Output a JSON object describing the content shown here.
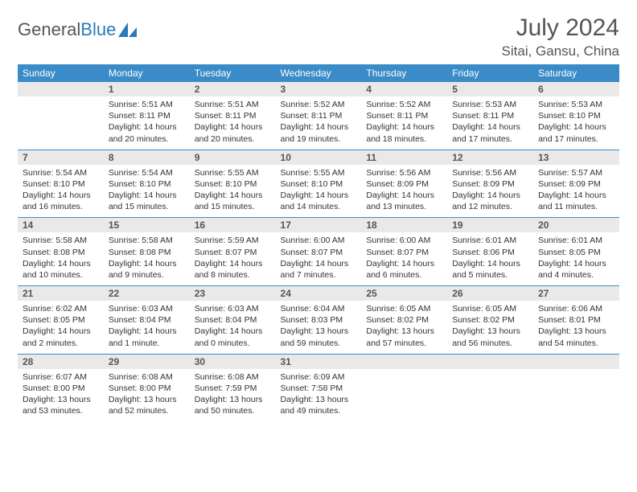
{
  "brand": {
    "name_gray": "General",
    "name_blue": "Blue"
  },
  "title": "July 2024",
  "location": "Sitai, Gansu, China",
  "colors": {
    "header_bg": "#3b8bc9",
    "header_text": "#ffffff",
    "daynum_bg": "#e9e9e9",
    "daynum_text": "#555555",
    "rule": "#3b8bc9",
    "body_text": "#333333",
    "title_text": "#555555",
    "logo_blue": "#2a7ab9"
  },
  "day_names": [
    "Sunday",
    "Monday",
    "Tuesday",
    "Wednesday",
    "Thursday",
    "Friday",
    "Saturday"
  ],
  "weeks": [
    {
      "nums": [
        "",
        "1",
        "2",
        "3",
        "4",
        "5",
        "6"
      ],
      "cells": [
        null,
        {
          "sr": "Sunrise: 5:51 AM",
          "ss": "Sunset: 8:11 PM",
          "dl1": "Daylight: 14 hours",
          "dl2": "and 20 minutes."
        },
        {
          "sr": "Sunrise: 5:51 AM",
          "ss": "Sunset: 8:11 PM",
          "dl1": "Daylight: 14 hours",
          "dl2": "and 20 minutes."
        },
        {
          "sr": "Sunrise: 5:52 AM",
          "ss": "Sunset: 8:11 PM",
          "dl1": "Daylight: 14 hours",
          "dl2": "and 19 minutes."
        },
        {
          "sr": "Sunrise: 5:52 AM",
          "ss": "Sunset: 8:11 PM",
          "dl1": "Daylight: 14 hours",
          "dl2": "and 18 minutes."
        },
        {
          "sr": "Sunrise: 5:53 AM",
          "ss": "Sunset: 8:11 PM",
          "dl1": "Daylight: 14 hours",
          "dl2": "and 17 minutes."
        },
        {
          "sr": "Sunrise: 5:53 AM",
          "ss": "Sunset: 8:10 PM",
          "dl1": "Daylight: 14 hours",
          "dl2": "and 17 minutes."
        }
      ]
    },
    {
      "nums": [
        "7",
        "8",
        "9",
        "10",
        "11",
        "12",
        "13"
      ],
      "cells": [
        {
          "sr": "Sunrise: 5:54 AM",
          "ss": "Sunset: 8:10 PM",
          "dl1": "Daylight: 14 hours",
          "dl2": "and 16 minutes."
        },
        {
          "sr": "Sunrise: 5:54 AM",
          "ss": "Sunset: 8:10 PM",
          "dl1": "Daylight: 14 hours",
          "dl2": "and 15 minutes."
        },
        {
          "sr": "Sunrise: 5:55 AM",
          "ss": "Sunset: 8:10 PM",
          "dl1": "Daylight: 14 hours",
          "dl2": "and 15 minutes."
        },
        {
          "sr": "Sunrise: 5:55 AM",
          "ss": "Sunset: 8:10 PM",
          "dl1": "Daylight: 14 hours",
          "dl2": "and 14 minutes."
        },
        {
          "sr": "Sunrise: 5:56 AM",
          "ss": "Sunset: 8:09 PM",
          "dl1": "Daylight: 14 hours",
          "dl2": "and 13 minutes."
        },
        {
          "sr": "Sunrise: 5:56 AM",
          "ss": "Sunset: 8:09 PM",
          "dl1": "Daylight: 14 hours",
          "dl2": "and 12 minutes."
        },
        {
          "sr": "Sunrise: 5:57 AM",
          "ss": "Sunset: 8:09 PM",
          "dl1": "Daylight: 14 hours",
          "dl2": "and 11 minutes."
        }
      ]
    },
    {
      "nums": [
        "14",
        "15",
        "16",
        "17",
        "18",
        "19",
        "20"
      ],
      "cells": [
        {
          "sr": "Sunrise: 5:58 AM",
          "ss": "Sunset: 8:08 PM",
          "dl1": "Daylight: 14 hours",
          "dl2": "and 10 minutes."
        },
        {
          "sr": "Sunrise: 5:58 AM",
          "ss": "Sunset: 8:08 PM",
          "dl1": "Daylight: 14 hours",
          "dl2": "and 9 minutes."
        },
        {
          "sr": "Sunrise: 5:59 AM",
          "ss": "Sunset: 8:07 PM",
          "dl1": "Daylight: 14 hours",
          "dl2": "and 8 minutes."
        },
        {
          "sr": "Sunrise: 6:00 AM",
          "ss": "Sunset: 8:07 PM",
          "dl1": "Daylight: 14 hours",
          "dl2": "and 7 minutes."
        },
        {
          "sr": "Sunrise: 6:00 AM",
          "ss": "Sunset: 8:07 PM",
          "dl1": "Daylight: 14 hours",
          "dl2": "and 6 minutes."
        },
        {
          "sr": "Sunrise: 6:01 AM",
          "ss": "Sunset: 8:06 PM",
          "dl1": "Daylight: 14 hours",
          "dl2": "and 5 minutes."
        },
        {
          "sr": "Sunrise: 6:01 AM",
          "ss": "Sunset: 8:05 PM",
          "dl1": "Daylight: 14 hours",
          "dl2": "and 4 minutes."
        }
      ]
    },
    {
      "nums": [
        "21",
        "22",
        "23",
        "24",
        "25",
        "26",
        "27"
      ],
      "cells": [
        {
          "sr": "Sunrise: 6:02 AM",
          "ss": "Sunset: 8:05 PM",
          "dl1": "Daylight: 14 hours",
          "dl2": "and 2 minutes."
        },
        {
          "sr": "Sunrise: 6:03 AM",
          "ss": "Sunset: 8:04 PM",
          "dl1": "Daylight: 14 hours",
          "dl2": "and 1 minute."
        },
        {
          "sr": "Sunrise: 6:03 AM",
          "ss": "Sunset: 8:04 PM",
          "dl1": "Daylight: 14 hours",
          "dl2": "and 0 minutes."
        },
        {
          "sr": "Sunrise: 6:04 AM",
          "ss": "Sunset: 8:03 PM",
          "dl1": "Daylight: 13 hours",
          "dl2": "and 59 minutes."
        },
        {
          "sr": "Sunrise: 6:05 AM",
          "ss": "Sunset: 8:02 PM",
          "dl1": "Daylight: 13 hours",
          "dl2": "and 57 minutes."
        },
        {
          "sr": "Sunrise: 6:05 AM",
          "ss": "Sunset: 8:02 PM",
          "dl1": "Daylight: 13 hours",
          "dl2": "and 56 minutes."
        },
        {
          "sr": "Sunrise: 6:06 AM",
          "ss": "Sunset: 8:01 PM",
          "dl1": "Daylight: 13 hours",
          "dl2": "and 54 minutes."
        }
      ]
    },
    {
      "nums": [
        "28",
        "29",
        "30",
        "31",
        "",
        "",
        ""
      ],
      "cells": [
        {
          "sr": "Sunrise: 6:07 AM",
          "ss": "Sunset: 8:00 PM",
          "dl1": "Daylight: 13 hours",
          "dl2": "and 53 minutes."
        },
        {
          "sr": "Sunrise: 6:08 AM",
          "ss": "Sunset: 8:00 PM",
          "dl1": "Daylight: 13 hours",
          "dl2": "and 52 minutes."
        },
        {
          "sr": "Sunrise: 6:08 AM",
          "ss": "Sunset: 7:59 PM",
          "dl1": "Daylight: 13 hours",
          "dl2": "and 50 minutes."
        },
        {
          "sr": "Sunrise: 6:09 AM",
          "ss": "Sunset: 7:58 PM",
          "dl1": "Daylight: 13 hours",
          "dl2": "and 49 minutes."
        },
        null,
        null,
        null
      ]
    }
  ]
}
